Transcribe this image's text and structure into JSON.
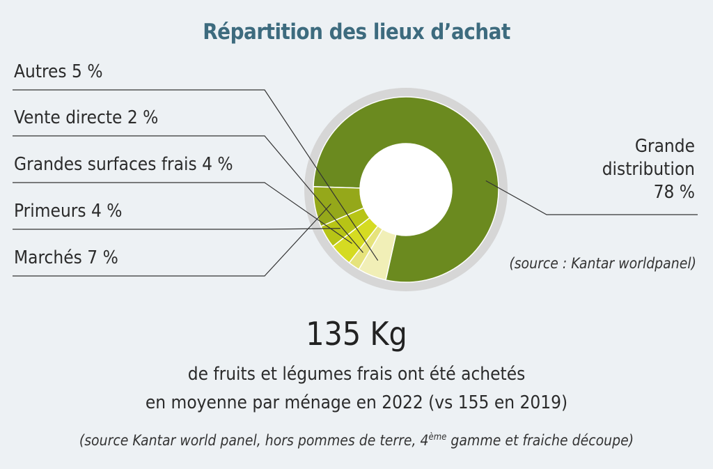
{
  "chart_data": {
    "type": "pie",
    "title": "Répartition des lieux d’achat",
    "slices": [
      {
        "label": "Grande distribution",
        "value": 78,
        "display": [
          "Grande",
          "distribution",
          "78 %"
        ],
        "color": "#6b8a1f"
      },
      {
        "label": "Autres",
        "value": 5,
        "display": "Autres 5 %",
        "color": "#f1efb7"
      },
      {
        "label": "Vente directe",
        "value": 2,
        "display": "Vente directe 2 %",
        "color": "#e6e37c"
      },
      {
        "label": "Grandes surfaces frais",
        "value": 4,
        "display": "Grandes surfaces frais 4 %",
        "color": "#d5db22"
      },
      {
        "label": "Primeurs",
        "value": 4,
        "display": "Primeurs 4 %",
        "color": "#b7c416"
      },
      {
        "label": "Marchés",
        "value": 7,
        "display": "Marchés 7 %",
        "color": "#95a81a"
      }
    ],
    "source": "(source : Kantar worldpanel)"
  },
  "stat": {
    "number": "135 Kg",
    "line1": "de fruits et légumes frais ont été achetés",
    "line2": "en moyenne par ménage en 2022 (vs 155 en 2019)",
    "source_before": "(source Kantar world panel, hors pommes de terre, 4",
    "source_sup": "ème",
    "source_after": " gamme et fraiche découpe)"
  }
}
